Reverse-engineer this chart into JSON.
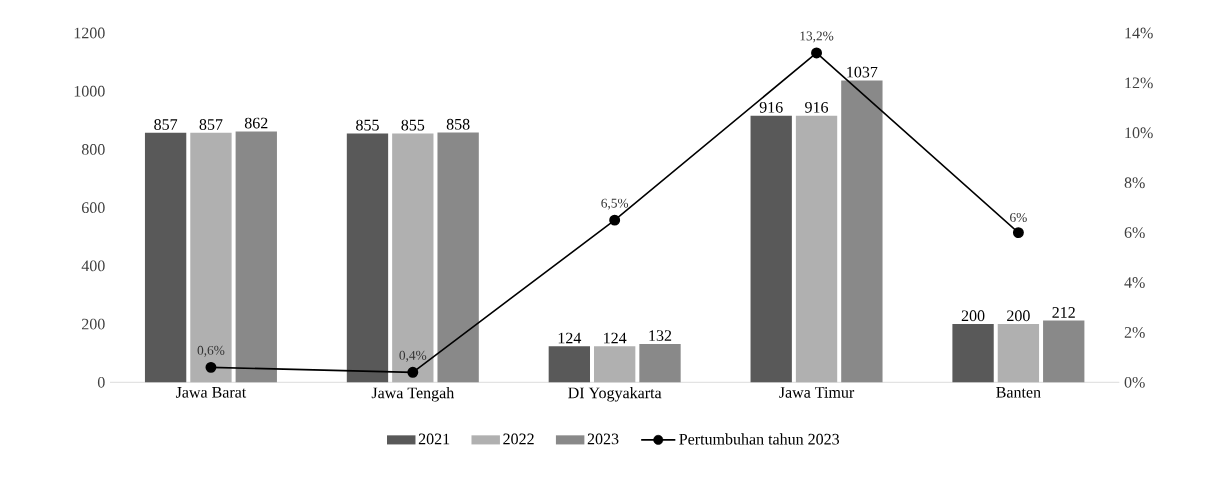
{
  "chart_data": {
    "type": "bar",
    "categories": [
      "Jawa Barat",
      "Jawa Tengah",
      "DI Yogyakarta",
      "Jawa Timur",
      "Banten"
    ],
    "series": [
      {
        "name": "2021",
        "color": "#595959",
        "values": [
          857,
          855,
          124,
          916,
          200
        ],
        "value_labels": [
          "857",
          "855",
          "124",
          "916",
          "200"
        ]
      },
      {
        "name": "2022",
        "color": "#b0b0b0",
        "values": [
          857,
          855,
          124,
          916,
          200
        ],
        "value_labels": [
          "857",
          "855",
          "124",
          "916",
          "200"
        ]
      },
      {
        "name": "2023",
        "color": "#898989",
        "values": [
          862,
          858,
          132,
          1037,
          212
        ],
        "value_labels": [
          "862",
          "858",
          "132",
          "1037",
          "212"
        ]
      },
      {
        "name": "Pertumbuhan tahun 2023",
        "type": "line",
        "axis": "y2",
        "color": "#000000",
        "marker": "circle",
        "values": [
          0.6,
          0.4,
          6.5,
          13.2,
          6
        ],
        "value_labels": [
          "0,6%",
          "0,4%",
          "6,5%",
          "13,2%",
          "6%"
        ]
      }
    ],
    "ylim": [
      0,
      1200
    ],
    "yticks": [
      0,
      200,
      400,
      600,
      800,
      1000,
      1200
    ],
    "y2lim": [
      0,
      14
    ],
    "y2ticks": [
      {
        "value": 0,
        "label": "0%"
      },
      {
        "value": 2,
        "label": "2%"
      },
      {
        "value": 4,
        "label": "4%"
      },
      {
        "value": 6,
        "label": "6%"
      },
      {
        "value": 8,
        "label": "8%"
      },
      {
        "value": 10,
        "label": "10%"
      },
      {
        "value": 12,
        "label": "12%"
      },
      {
        "value": 14,
        "label": "14%"
      }
    ],
    "legend": "bottom",
    "grid": false
  }
}
